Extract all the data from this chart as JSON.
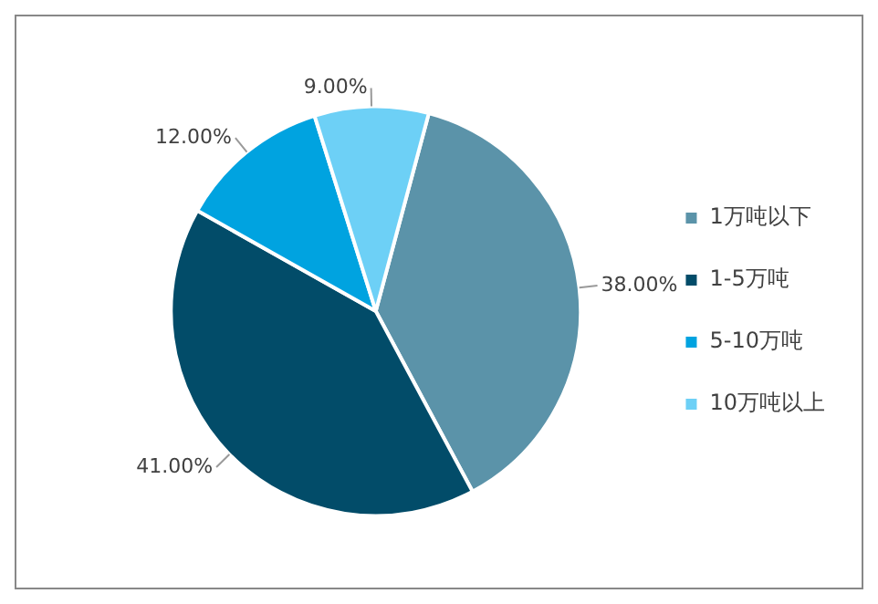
{
  "chart_data": {
    "type": "pie",
    "categories": [
      "1万吨以下",
      "1-5万吨",
      "5-10万吨",
      "10万吨以上"
    ],
    "values": [
      38,
      41,
      12,
      9
    ],
    "value_labels": [
      "38.00%",
      "41.00%",
      "12.00%",
      "9.00%"
    ],
    "colors": [
      "#5b93a9",
      "#024c69",
      "#00a3e0",
      "#6dd0f6"
    ],
    "legend": "right"
  }
}
